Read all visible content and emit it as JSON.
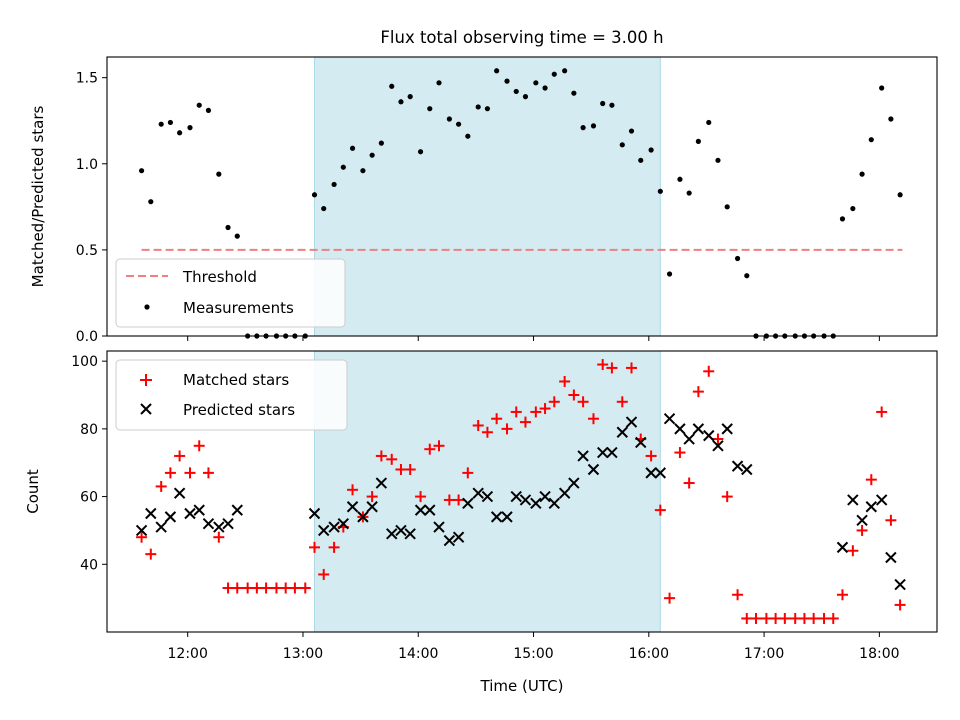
{
  "title": "Flux total observing time = 3.00 h",
  "colors": {
    "band": "#add8e6",
    "threshold": "#f08080",
    "measurement": "#000000",
    "matched": "#ff0000",
    "predicted": "#000000"
  },
  "chart_data": [
    {
      "type": "scatter",
      "panel": "top",
      "title": "Flux total observing time = 3.00 h",
      "xlabel": "",
      "ylabel": "Matched/Predicted stars",
      "x_unit": "hours (UTC)",
      "xlim": [
        11.3,
        18.5
      ],
      "ylim": [
        0,
        1.62
      ],
      "yticks": [
        0.0,
        0.5,
        1.0,
        1.5
      ],
      "ytick_labels": [
        "0.0",
        "0.5",
        "1.0",
        "1.5"
      ],
      "shaded_interval": [
        13.1,
        16.1
      ],
      "legend": {
        "position": "lower-left",
        "entries": [
          "Threshold",
          "Measurements"
        ]
      },
      "threshold": {
        "name": "Threshold",
        "value": 0.5,
        "x_range": [
          11.6,
          18.2
        ],
        "style": "dashed"
      },
      "series": [
        {
          "name": "Measurements",
          "marker": "dot",
          "points": [
            [
              11.6,
              0.96
            ],
            [
              11.68,
              0.78
            ],
            [
              11.77,
              1.23
            ],
            [
              11.85,
              1.24
            ],
            [
              11.93,
              1.18
            ],
            [
              12.02,
              1.21
            ],
            [
              12.1,
              1.34
            ],
            [
              12.18,
              1.31
            ],
            [
              12.27,
              0.94
            ],
            [
              12.35,
              0.63
            ],
            [
              12.43,
              0.58
            ],
            [
              12.52,
              0.0
            ],
            [
              12.6,
              0.0
            ],
            [
              12.68,
              0.0
            ],
            [
              12.77,
              0.0
            ],
            [
              12.85,
              0.0
            ],
            [
              12.93,
              0.0
            ],
            [
              13.02,
              0.0
            ],
            [
              13.1,
              0.82
            ],
            [
              13.18,
              0.74
            ],
            [
              13.27,
              0.88
            ],
            [
              13.35,
              0.98
            ],
            [
              13.43,
              1.09
            ],
            [
              13.52,
              0.96
            ],
            [
              13.6,
              1.05
            ],
            [
              13.68,
              1.12
            ],
            [
              13.77,
              1.45
            ],
            [
              13.85,
              1.36
            ],
            [
              13.93,
              1.39
            ],
            [
              14.02,
              1.07
            ],
            [
              14.1,
              1.32
            ],
            [
              14.18,
              1.47
            ],
            [
              14.27,
              1.26
            ],
            [
              14.35,
              1.23
            ],
            [
              14.43,
              1.16
            ],
            [
              14.52,
              1.33
            ],
            [
              14.6,
              1.32
            ],
            [
              14.68,
              1.54
            ],
            [
              14.77,
              1.48
            ],
            [
              14.85,
              1.42
            ],
            [
              14.93,
              1.39
            ],
            [
              15.02,
              1.47
            ],
            [
              15.1,
              1.44
            ],
            [
              15.18,
              1.52
            ],
            [
              15.27,
              1.54
            ],
            [
              15.35,
              1.41
            ],
            [
              15.43,
              1.21
            ],
            [
              15.52,
              1.22
            ],
            [
              15.6,
              1.35
            ],
            [
              15.68,
              1.34
            ],
            [
              15.77,
              1.11
            ],
            [
              15.85,
              1.19
            ],
            [
              15.93,
              1.02
            ],
            [
              16.02,
              1.08
            ],
            [
              16.1,
              0.84
            ],
            [
              16.18,
              0.36
            ],
            [
              16.27,
              0.91
            ],
            [
              16.35,
              0.83
            ],
            [
              16.43,
              1.13
            ],
            [
              16.52,
              1.24
            ],
            [
              16.6,
              1.02
            ],
            [
              16.68,
              0.75
            ],
            [
              16.77,
              0.45
            ],
            [
              16.85,
              0.35
            ],
            [
              16.93,
              0.0
            ],
            [
              17.02,
              0.0
            ],
            [
              17.1,
              0.0
            ],
            [
              17.18,
              0.0
            ],
            [
              17.27,
              0.0
            ],
            [
              17.35,
              0.0
            ],
            [
              17.43,
              0.0
            ],
            [
              17.52,
              0.0
            ],
            [
              17.6,
              0.0
            ],
            [
              17.68,
              0.68
            ],
            [
              17.77,
              0.74
            ],
            [
              17.85,
              0.94
            ],
            [
              17.93,
              1.14
            ],
            [
              18.02,
              1.44
            ],
            [
              18.1,
              1.26
            ],
            [
              18.18,
              0.82
            ]
          ]
        }
      ]
    },
    {
      "type": "scatter",
      "panel": "bottom",
      "title": "",
      "xlabel": "Time (UTC)",
      "ylabel": "Count",
      "x_unit": "hours (UTC)",
      "xlim": [
        11.3,
        18.5
      ],
      "ylim": [
        20,
        103
      ],
      "yticks": [
        40,
        60,
        80,
        100
      ],
      "ytick_labels": [
        "40",
        "60",
        "80",
        "100"
      ],
      "xticks": [
        12,
        13,
        14,
        15,
        16,
        17,
        18
      ],
      "xtick_labels": [
        "12:00",
        "13:00",
        "14:00",
        "15:00",
        "16:00",
        "17:00",
        "18:00"
      ],
      "shaded_interval": [
        13.1,
        16.1
      ],
      "legend": {
        "position": "upper-left",
        "entries": [
          "Matched stars",
          "Predicted stars"
        ]
      },
      "series": [
        {
          "name": "Matched stars",
          "marker": "plus",
          "points": [
            [
              11.6,
              48
            ],
            [
              11.68,
              43
            ],
            [
              11.77,
              63
            ],
            [
              11.85,
              67
            ],
            [
              11.93,
              72
            ],
            [
              12.02,
              67
            ],
            [
              12.1,
              75
            ],
            [
              12.18,
              67
            ],
            [
              12.27,
              48
            ],
            [
              12.35,
              33
            ],
            [
              12.43,
              33
            ],
            [
              12.52,
              33
            ],
            [
              12.6,
              33
            ],
            [
              12.68,
              33
            ],
            [
              12.77,
              33
            ],
            [
              12.85,
              33
            ],
            [
              12.93,
              33
            ],
            [
              13.02,
              33
            ],
            [
              13.1,
              45
            ],
            [
              13.18,
              37
            ],
            [
              13.27,
              45
            ],
            [
              13.35,
              51
            ],
            [
              13.43,
              62
            ],
            [
              13.52,
              54
            ],
            [
              13.6,
              60
            ],
            [
              13.68,
              72
            ],
            [
              13.77,
              71
            ],
            [
              13.85,
              68
            ],
            [
              13.93,
              68
            ],
            [
              14.02,
              60
            ],
            [
              14.1,
              74
            ],
            [
              14.18,
              75
            ],
            [
              14.27,
              59
            ],
            [
              14.35,
              59
            ],
            [
              14.43,
              67
            ],
            [
              14.52,
              81
            ],
            [
              14.6,
              79
            ],
            [
              14.68,
              83
            ],
            [
              14.77,
              80
            ],
            [
              14.85,
              85
            ],
            [
              14.93,
              82
            ],
            [
              15.02,
              85
            ],
            [
              15.1,
              86
            ],
            [
              15.18,
              88
            ],
            [
              15.27,
              94
            ],
            [
              15.35,
              90
            ],
            [
              15.43,
              88
            ],
            [
              15.52,
              83
            ],
            [
              15.6,
              99
            ],
            [
              15.68,
              98
            ],
            [
              15.77,
              88
            ],
            [
              15.85,
              98
            ],
            [
              15.93,
              77
            ],
            [
              16.02,
              72
            ],
            [
              16.1,
              56
            ],
            [
              16.18,
              30
            ],
            [
              16.27,
              73
            ],
            [
              16.35,
              64
            ],
            [
              16.43,
              91
            ],
            [
              16.52,
              97
            ],
            [
              16.6,
              77
            ],
            [
              16.68,
              60
            ],
            [
              16.77,
              31
            ],
            [
              16.85,
              24
            ],
            [
              16.93,
              24
            ],
            [
              17.02,
              24
            ],
            [
              17.1,
              24
            ],
            [
              17.18,
              24
            ],
            [
              17.27,
              24
            ],
            [
              17.35,
              24
            ],
            [
              17.43,
              24
            ],
            [
              17.52,
              24
            ],
            [
              17.6,
              24
            ],
            [
              17.68,
              31
            ],
            [
              17.77,
              44
            ],
            [
              17.85,
              50
            ],
            [
              17.93,
              65
            ],
            [
              18.02,
              85
            ],
            [
              18.1,
              53
            ],
            [
              18.18,
              28
            ]
          ]
        },
        {
          "name": "Predicted stars",
          "marker": "x",
          "points": [
            [
              11.6,
              50
            ],
            [
              11.68,
              55
            ],
            [
              11.77,
              51
            ],
            [
              11.85,
              54
            ],
            [
              11.93,
              61
            ],
            [
              12.02,
              55
            ],
            [
              12.1,
              56
            ],
            [
              12.18,
              52
            ],
            [
              12.27,
              51
            ],
            [
              12.35,
              52
            ],
            [
              12.43,
              56
            ],
            [
              13.1,
              55
            ],
            [
              13.18,
              50
            ],
            [
              13.27,
              51
            ],
            [
              13.35,
              52
            ],
            [
              13.43,
              57
            ],
            [
              13.52,
              54
            ],
            [
              13.6,
              57
            ],
            [
              13.68,
              64
            ],
            [
              13.77,
              49
            ],
            [
              13.85,
              50
            ],
            [
              13.93,
              49
            ],
            [
              14.02,
              56
            ],
            [
              14.1,
              56
            ],
            [
              14.18,
              51
            ],
            [
              14.27,
              47
            ],
            [
              14.35,
              48
            ],
            [
              14.43,
              58
            ],
            [
              14.52,
              61
            ],
            [
              14.6,
              60
            ],
            [
              14.68,
              54
            ],
            [
              14.77,
              54
            ],
            [
              14.85,
              60
            ],
            [
              14.93,
              59
            ],
            [
              15.02,
              58
            ],
            [
              15.1,
              60
            ],
            [
              15.18,
              58
            ],
            [
              15.27,
              61
            ],
            [
              15.35,
              64
            ],
            [
              15.43,
              72
            ],
            [
              15.52,
              68
            ],
            [
              15.6,
              73
            ],
            [
              15.68,
              73
            ],
            [
              15.77,
              79
            ],
            [
              15.85,
              82
            ],
            [
              15.93,
              76
            ],
            [
              16.02,
              67
            ],
            [
              16.1,
              67
            ],
            [
              16.18,
              83
            ],
            [
              16.27,
              80
            ],
            [
              16.35,
              77
            ],
            [
              16.43,
              80
            ],
            [
              16.52,
              78
            ],
            [
              16.6,
              75
            ],
            [
              16.68,
              80
            ],
            [
              16.77,
              69
            ],
            [
              16.85,
              68
            ],
            [
              17.68,
              45
            ],
            [
              17.77,
              59
            ],
            [
              17.85,
              53
            ],
            [
              17.93,
              57
            ],
            [
              18.02,
              59
            ],
            [
              18.1,
              42
            ],
            [
              18.18,
              34
            ]
          ]
        }
      ]
    }
  ]
}
